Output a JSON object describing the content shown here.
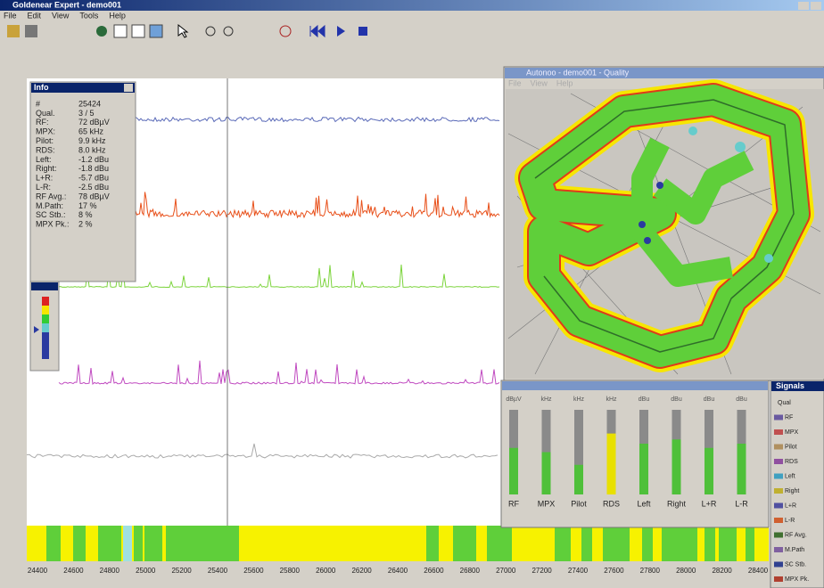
{
  "window": {
    "title": "Goldenear Expert - demo001",
    "menu": [
      "File",
      "Edit",
      "View",
      "Tools",
      "Help"
    ]
  },
  "info": {
    "title": "Info",
    "rows": [
      [
        "#",
        "25424"
      ],
      [
        "Qual.",
        "3 / 5"
      ],
      [
        "RF:",
        "72 dBµV"
      ],
      [
        "MPX:",
        "65 kHz"
      ],
      [
        "Pilot:",
        "9.9 kHz"
      ],
      [
        "RDS:",
        "8.0 kHz"
      ],
      [
        "Left:",
        "-1.2 dBu"
      ],
      [
        "Right:",
        "-1.8 dBu"
      ],
      [
        "L+R:",
        "-5.7 dBu"
      ],
      [
        "L-R:",
        "-2.5 dBu"
      ],
      [
        "RF Avg.:",
        "78 dBµV"
      ],
      [
        "M.Path:",
        "17 %"
      ],
      [
        "SC Stb.:",
        "8 %"
      ],
      [
        "MPX Pk.:",
        "2 %"
      ]
    ]
  },
  "map_window": {
    "title": "Autonoo - demo001 - Quality",
    "menu": [
      "File",
      "View",
      "Help"
    ]
  },
  "meters": {
    "units": [
      "dBµV",
      "kHz",
      "kHz",
      "kHz",
      "dBu",
      "dBu",
      "dBu",
      "dBu"
    ],
    "labels": [
      "RF",
      "MPX",
      "Pilot",
      "RDS",
      "Left",
      "Right",
      "L+R",
      "L-R"
    ]
  },
  "signals": {
    "title": "Signals",
    "items": [
      "Qual",
      "RF",
      "MPX",
      "Pilot",
      "RDS",
      "Left",
      "Right",
      "L+R",
      "L-R",
      "RF Avg.",
      "M.Path",
      "SC Stb.",
      "MPX Pk."
    ]
  },
  "axis": {
    "ticks": [
      "24400",
      "24600",
      "24800",
      "25000",
      "25200",
      "25400",
      "25600",
      "25800",
      "26000",
      "26200",
      "26400",
      "26600",
      "26800",
      "27000",
      "27200",
      "27400",
      "27600",
      "27800",
      "28000",
      "28200",
      "28400"
    ]
  }
}
